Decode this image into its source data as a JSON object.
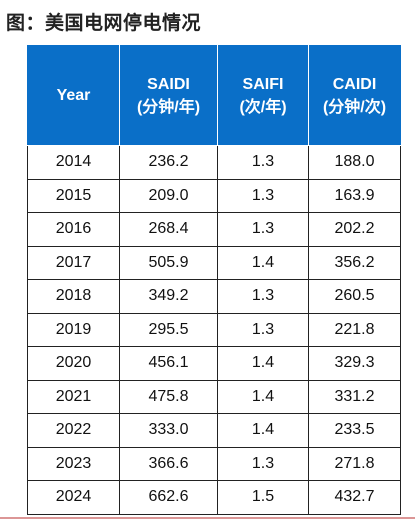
{
  "title": "图：美国电网停电情况",
  "table": {
    "headers": [
      {
        "line1": "Year",
        "line2": ""
      },
      {
        "line1": "SAIDI",
        "line2": "(分钟/年)"
      },
      {
        "line1": "SAIFI",
        "line2": "(次/年)"
      },
      {
        "line1": "CAIDI",
        "line2": "(分钟/次)"
      }
    ],
    "rows": [
      [
        "2014",
        "236.2",
        "1.3",
        "188.0"
      ],
      [
        "2015",
        "209.0",
        "1.3",
        "163.9"
      ],
      [
        "2016",
        "268.4",
        "1.3",
        "202.2"
      ],
      [
        "2017",
        "505.9",
        "1.4",
        "356.2"
      ],
      [
        "2018",
        "349.2",
        "1.3",
        "260.5"
      ],
      [
        "2019",
        "295.5",
        "1.3",
        "221.8"
      ],
      [
        "2020",
        "456.1",
        "1.4",
        "329.3"
      ],
      [
        "2021",
        "475.8",
        "1.4",
        "331.2"
      ],
      [
        "2022",
        "333.0",
        "1.4",
        "233.5"
      ],
      [
        "2023",
        "366.6",
        "1.3",
        "271.8"
      ],
      [
        "2024",
        "662.6",
        "1.5",
        "432.7"
      ]
    ]
  },
  "colors": {
    "header_bg": "#0a6fc8",
    "header_text": "#ffffff"
  }
}
